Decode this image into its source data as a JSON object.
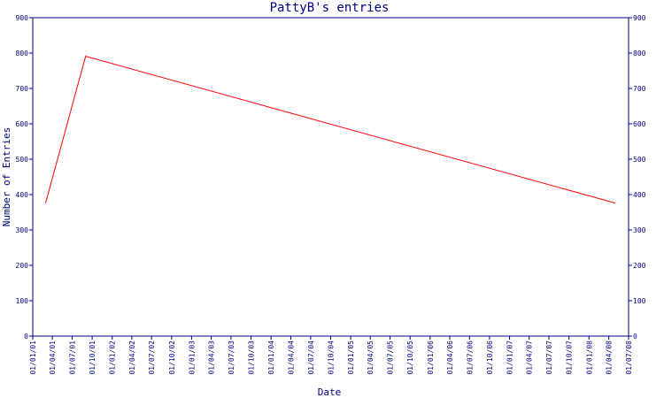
{
  "chart_data": {
    "type": "line",
    "title": "PattyB's entries",
    "xlabel": "Date",
    "ylabel": "Number of Entries",
    "ylim": [
      0,
      900
    ],
    "yticks": [
      0,
      100,
      200,
      300,
      400,
      500,
      600,
      700,
      800,
      900
    ],
    "xticks": [
      "01/01/01",
      "01/04/01",
      "01/07/01",
      "01/10/01",
      "01/01/02",
      "01/04/02",
      "01/07/02",
      "01/10/02",
      "01/01/03",
      "01/04/03",
      "01/07/03",
      "01/10/03",
      "01/01/04",
      "01/04/04",
      "01/07/04",
      "01/10/04",
      "01/01/05",
      "01/04/05",
      "01/07/05",
      "01/10/05",
      "01/01/06",
      "01/04/06",
      "01/07/06",
      "01/10/06",
      "01/01/07",
      "01/04/07",
      "01/07/07",
      "01/10/07",
      "01/01/08",
      "01/04/08",
      "01/07/08"
    ],
    "grid": false,
    "series": [
      {
        "color": "#ff0000",
        "points": [
          {
            "x": "2001-03-01",
            "y": 376
          },
          {
            "x": "2001-09-01",
            "y": 791
          },
          {
            "x": "2008-05-01",
            "y": 376
          }
        ]
      }
    ]
  },
  "colors": {
    "axis": "#000080",
    "line": "#ff0000",
    "background": "#ffffff"
  }
}
